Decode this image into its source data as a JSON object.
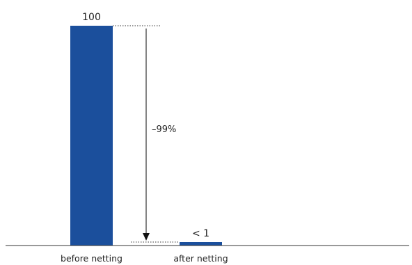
{
  "chart_data": {
    "type": "bar",
    "categories": [
      "before netting",
      "after netting"
    ],
    "values": [
      100,
      1
    ],
    "data_labels": [
      "100",
      "< 1"
    ],
    "annotation": "–99%",
    "ylim": [
      0,
      100
    ],
    "grid": false,
    "colors": {
      "bar": "#1b4f9c",
      "axis": "#333333",
      "guide": "#333333",
      "text": "#222222"
    }
  }
}
